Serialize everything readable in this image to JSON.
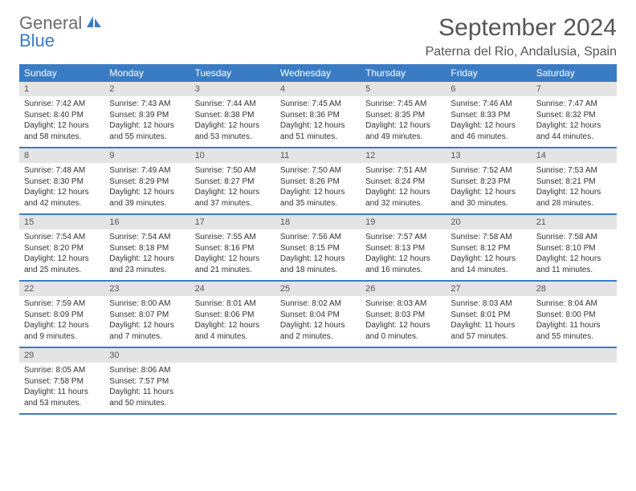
{
  "logo": {
    "line1": "General",
    "line2": "Blue"
  },
  "title": "September 2024",
  "location": "Paterna del Rio, Andalusia, Spain",
  "colors": {
    "header_blue": "#3a7cc4",
    "daynum_bg": "#e4e4e4",
    "text": "#333333",
    "title_text": "#555555",
    "background": "#ffffff"
  },
  "weekdays": [
    "Sunday",
    "Monday",
    "Tuesday",
    "Wednesday",
    "Thursday",
    "Friday",
    "Saturday"
  ],
  "weeks": [
    [
      {
        "n": "1",
        "sr": "Sunrise: 7:42 AM",
        "ss": "Sunset: 8:40 PM",
        "d1": "Daylight: 12 hours",
        "d2": "and 58 minutes."
      },
      {
        "n": "2",
        "sr": "Sunrise: 7:43 AM",
        "ss": "Sunset: 8:39 PM",
        "d1": "Daylight: 12 hours",
        "d2": "and 55 minutes."
      },
      {
        "n": "3",
        "sr": "Sunrise: 7:44 AM",
        "ss": "Sunset: 8:38 PM",
        "d1": "Daylight: 12 hours",
        "d2": "and 53 minutes."
      },
      {
        "n": "4",
        "sr": "Sunrise: 7:45 AM",
        "ss": "Sunset: 8:36 PM",
        "d1": "Daylight: 12 hours",
        "d2": "and 51 minutes."
      },
      {
        "n": "5",
        "sr": "Sunrise: 7:45 AM",
        "ss": "Sunset: 8:35 PM",
        "d1": "Daylight: 12 hours",
        "d2": "and 49 minutes."
      },
      {
        "n": "6",
        "sr": "Sunrise: 7:46 AM",
        "ss": "Sunset: 8:33 PM",
        "d1": "Daylight: 12 hours",
        "d2": "and 46 minutes."
      },
      {
        "n": "7",
        "sr": "Sunrise: 7:47 AM",
        "ss": "Sunset: 8:32 PM",
        "d1": "Daylight: 12 hours",
        "d2": "and 44 minutes."
      }
    ],
    [
      {
        "n": "8",
        "sr": "Sunrise: 7:48 AM",
        "ss": "Sunset: 8:30 PM",
        "d1": "Daylight: 12 hours",
        "d2": "and 42 minutes."
      },
      {
        "n": "9",
        "sr": "Sunrise: 7:49 AM",
        "ss": "Sunset: 8:29 PM",
        "d1": "Daylight: 12 hours",
        "d2": "and 39 minutes."
      },
      {
        "n": "10",
        "sr": "Sunrise: 7:50 AM",
        "ss": "Sunset: 8:27 PM",
        "d1": "Daylight: 12 hours",
        "d2": "and 37 minutes."
      },
      {
        "n": "11",
        "sr": "Sunrise: 7:50 AM",
        "ss": "Sunset: 8:26 PM",
        "d1": "Daylight: 12 hours",
        "d2": "and 35 minutes."
      },
      {
        "n": "12",
        "sr": "Sunrise: 7:51 AM",
        "ss": "Sunset: 8:24 PM",
        "d1": "Daylight: 12 hours",
        "d2": "and 32 minutes."
      },
      {
        "n": "13",
        "sr": "Sunrise: 7:52 AM",
        "ss": "Sunset: 8:23 PM",
        "d1": "Daylight: 12 hours",
        "d2": "and 30 minutes."
      },
      {
        "n": "14",
        "sr": "Sunrise: 7:53 AM",
        "ss": "Sunset: 8:21 PM",
        "d1": "Daylight: 12 hours",
        "d2": "and 28 minutes."
      }
    ],
    [
      {
        "n": "15",
        "sr": "Sunrise: 7:54 AM",
        "ss": "Sunset: 8:20 PM",
        "d1": "Daylight: 12 hours",
        "d2": "and 25 minutes."
      },
      {
        "n": "16",
        "sr": "Sunrise: 7:54 AM",
        "ss": "Sunset: 8:18 PM",
        "d1": "Daylight: 12 hours",
        "d2": "and 23 minutes."
      },
      {
        "n": "17",
        "sr": "Sunrise: 7:55 AM",
        "ss": "Sunset: 8:16 PM",
        "d1": "Daylight: 12 hours",
        "d2": "and 21 minutes."
      },
      {
        "n": "18",
        "sr": "Sunrise: 7:56 AM",
        "ss": "Sunset: 8:15 PM",
        "d1": "Daylight: 12 hours",
        "d2": "and 18 minutes."
      },
      {
        "n": "19",
        "sr": "Sunrise: 7:57 AM",
        "ss": "Sunset: 8:13 PM",
        "d1": "Daylight: 12 hours",
        "d2": "and 16 minutes."
      },
      {
        "n": "20",
        "sr": "Sunrise: 7:58 AM",
        "ss": "Sunset: 8:12 PM",
        "d1": "Daylight: 12 hours",
        "d2": "and 14 minutes."
      },
      {
        "n": "21",
        "sr": "Sunrise: 7:58 AM",
        "ss": "Sunset: 8:10 PM",
        "d1": "Daylight: 12 hours",
        "d2": "and 11 minutes."
      }
    ],
    [
      {
        "n": "22",
        "sr": "Sunrise: 7:59 AM",
        "ss": "Sunset: 8:09 PM",
        "d1": "Daylight: 12 hours",
        "d2": "and 9 minutes."
      },
      {
        "n": "23",
        "sr": "Sunrise: 8:00 AM",
        "ss": "Sunset: 8:07 PM",
        "d1": "Daylight: 12 hours",
        "d2": "and 7 minutes."
      },
      {
        "n": "24",
        "sr": "Sunrise: 8:01 AM",
        "ss": "Sunset: 8:06 PM",
        "d1": "Daylight: 12 hours",
        "d2": "and 4 minutes."
      },
      {
        "n": "25",
        "sr": "Sunrise: 8:02 AM",
        "ss": "Sunset: 8:04 PM",
        "d1": "Daylight: 12 hours",
        "d2": "and 2 minutes."
      },
      {
        "n": "26",
        "sr": "Sunrise: 8:03 AM",
        "ss": "Sunset: 8:03 PM",
        "d1": "Daylight: 12 hours",
        "d2": "and 0 minutes."
      },
      {
        "n": "27",
        "sr": "Sunrise: 8:03 AM",
        "ss": "Sunset: 8:01 PM",
        "d1": "Daylight: 11 hours",
        "d2": "and 57 minutes."
      },
      {
        "n": "28",
        "sr": "Sunrise: 8:04 AM",
        "ss": "Sunset: 8:00 PM",
        "d1": "Daylight: 11 hours",
        "d2": "and 55 minutes."
      }
    ],
    [
      {
        "n": "29",
        "sr": "Sunrise: 8:05 AM",
        "ss": "Sunset: 7:58 PM",
        "d1": "Daylight: 11 hours",
        "d2": "and 53 minutes."
      },
      {
        "n": "30",
        "sr": "Sunrise: 8:06 AM",
        "ss": "Sunset: 7:57 PM",
        "d1": "Daylight: 11 hours",
        "d2": "and 50 minutes."
      },
      null,
      null,
      null,
      null,
      null
    ]
  ]
}
